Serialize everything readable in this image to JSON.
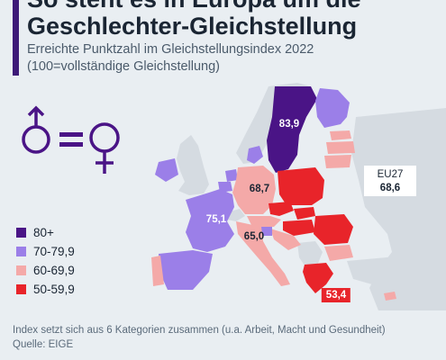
{
  "header": {
    "title_line1": "So steht es in Europa um die",
    "title_line2": "Geschlechter-Gleichstellung",
    "subtitle_line1": "Erreichte Punktzahl im Gleichstellungsindex 2022",
    "subtitle_line2": "(100=vollständige Gleichstellung)"
  },
  "icon": "gender-equality-icon",
  "colors": {
    "accent": "#3d1a78",
    "c80": "#4a1486",
    "c70": "#9b7fe8",
    "c60": "#f4a9a8",
    "c50": "#e8242a",
    "nodata": "#d5dbe1",
    "sea": "#e9eef2"
  },
  "legend": [
    {
      "label": "80+",
      "color": "#4a1486"
    },
    {
      "label": "70-79,9",
      "color": "#9b7fe8"
    },
    {
      "label": "60-69,9",
      "color": "#f4a9a8"
    },
    {
      "label": "50-59,9",
      "color": "#e8242a"
    }
  ],
  "eu27": {
    "label": "EU27",
    "value": "68,6"
  },
  "footer": {
    "note": "Index setzt sich aus 6 Kategorien zusammen (u.a. Arbeit, Macht und Gesundheit)",
    "source": "Quelle: EIGE"
  },
  "chart_data": {
    "type": "choropleth",
    "title": "So steht es in Europa um die Geschlechter-Gleichstellung",
    "subtitle": "Erreichte Punktzahl im Gleichstellungsindex 2022 (100=vollständige Gleichstellung)",
    "labeled_values": [
      {
        "region": "Schweden",
        "value": 83.9,
        "label": "83,9"
      },
      {
        "region": "Frankreich",
        "value": 75.1,
        "label": "75,1"
      },
      {
        "region": "Deutschland",
        "value": 68.7,
        "label": "68,7"
      },
      {
        "region": "Italien",
        "value": 65.0,
        "label": "65,0"
      },
      {
        "region": "Griechenland",
        "value": 53.4,
        "label": "53,4"
      }
    ],
    "reference": {
      "label": "EU27",
      "value": 68.6
    },
    "legend_bins": [
      "80+",
      "70-79,9",
      "60-69,9",
      "50-59,9"
    ],
    "legend_position": "bottom-left"
  }
}
